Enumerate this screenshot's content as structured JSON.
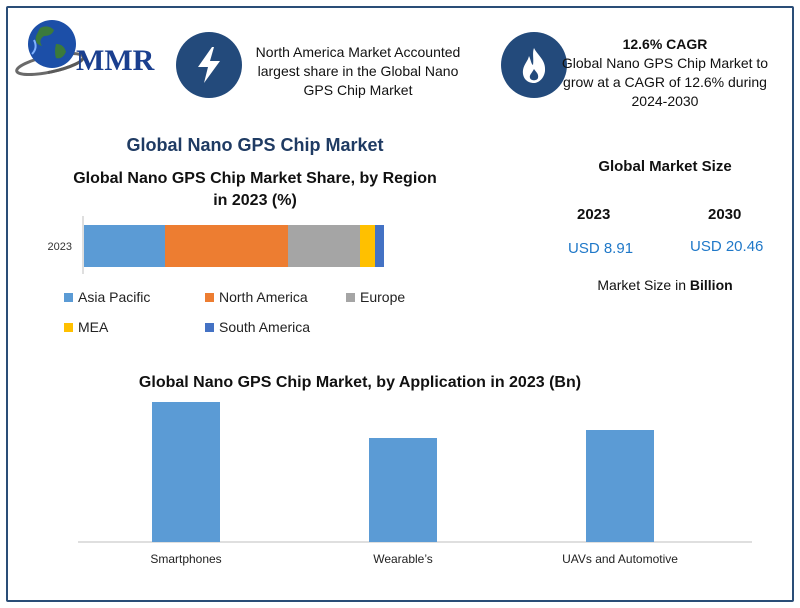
{
  "brand": {
    "logo_text": "MMR"
  },
  "info_left": {
    "icon": "lightning-bolt-icon",
    "text": "North America Market Accounted largest share in the Global Nano GPS Chip Market"
  },
  "info_right": {
    "icon": "flame-icon",
    "head": "12.6% CAGR",
    "text": "Global Nano GPS Chip Market to grow at a CAGR of 12.6% during 2024-2030"
  },
  "main_title": "Global Nano GPS Chip Market",
  "market_size": {
    "title": "Global Market Size",
    "year_a": "2023",
    "year_b": "2030",
    "value_a": "USD 8.91",
    "value_b": "USD 20.46",
    "unit_prefix": "Market Size in",
    "unit_bold": "Billion"
  },
  "colors": {
    "accent": "#234a7b",
    "asia_pacific": "#5b9bd5",
    "north_america": "#ed7d31",
    "europe": "#a5a5a5",
    "mea": "#ffc000",
    "south_america": "#4472c4"
  },
  "chart_data": [
    {
      "type": "bar",
      "orientation": "horizontal-stacked",
      "title": "Global Nano GPS Chip Market Share, by Region in 2023 (%)",
      "categories": [
        "2023"
      ],
      "series": [
        {
          "name": "Asia Pacific",
          "values": [
            27
          ]
        },
        {
          "name": "North America",
          "values": [
            41
          ]
        },
        {
          "name": "Europe",
          "values": [
            24
          ]
        },
        {
          "name": "MEA",
          "values": [
            5
          ]
        },
        {
          "name": "South America",
          "values": [
            3
          ]
        }
      ],
      "legend_position": "bottom"
    },
    {
      "type": "bar",
      "title": "Global Nano GPS Chip Market, by Application in 2023 (Bn)",
      "categories": [
        "Smartphones",
        "Wearable’s",
        "UAVs and Automotive"
      ],
      "values": [
        3.5,
        2.6,
        2.8
      ],
      "ylim": [
        0,
        4
      ],
      "grid": false
    }
  ]
}
